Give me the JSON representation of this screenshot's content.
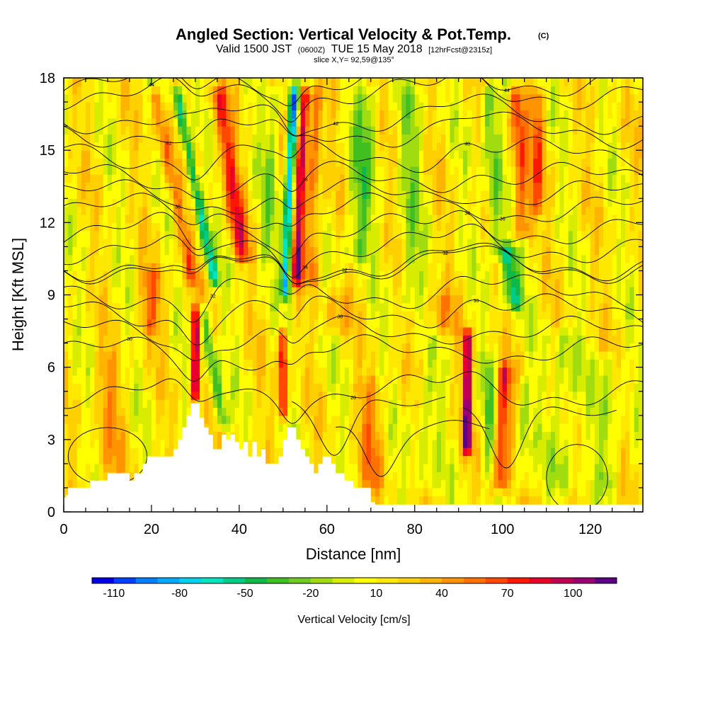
{
  "chart_data": {
    "type": "heatmap",
    "title_main": "Angled Section: Vertical Velocity & Pot.Temp.",
    "title_unit": "(C)",
    "subtitle_valid": "Valid 1500 JST",
    "subtitle_z": "(0600Z)",
    "subtitle_date": "TUE 15 May 2018",
    "subtitle_fcst": "[12hrFcst@2315z]",
    "slice_label": "slice X,Y= 92,59@135°",
    "xlabel": "Distance [nm]",
    "ylabel": "Height [Kft MSL]",
    "xlim": [
      0,
      132
    ],
    "ylim": [
      0,
      18
    ],
    "x_ticks": [
      0,
      20,
      40,
      60,
      80,
      100,
      120
    ],
    "y_ticks": [
      0,
      3,
      6,
      9,
      12,
      15,
      18
    ],
    "colorbar": {
      "title": "Vertical Velocity [cm/s]",
      "min": -120,
      "max": 120,
      "bins": 24,
      "labels": [
        -110,
        -80,
        -50,
        -20,
        10,
        40,
        70,
        100
      ],
      "colors": [
        "#0000e6",
        "#0040ff",
        "#0080ff",
        "#00aaff",
        "#00d2ee",
        "#00e5c0",
        "#00cc88",
        "#10b848",
        "#40c020",
        "#70cc20",
        "#a0dc10",
        "#d8ec00",
        "#ffff00",
        "#ffe800",
        "#ffd000",
        "#ffb400",
        "#ff9400",
        "#ff7200",
        "#ff4800",
        "#ff1800",
        "#e8002a",
        "#c00050",
        "#9a0070",
        "#5a0080"
      ]
    },
    "velocity_features": [
      {
        "x": 30,
        "zmin": 4.2,
        "zmax": 9.0,
        "peak": 95,
        "width": 1.0,
        "tilt": 0
      },
      {
        "x": 50,
        "zmin": 3.5,
        "zmax": 8.0,
        "peak": 90,
        "width": 0.9,
        "tilt": 0
      },
      {
        "x": 92,
        "zmin": 2.0,
        "zmax": 8.0,
        "peak": 95,
        "width": 1.0,
        "tilt": 0
      },
      {
        "x": 34,
        "zmin": 3.0,
        "zmax": 9.0,
        "peak": -55,
        "width": 1.4,
        "tilt": -1.0
      },
      {
        "x": 30,
        "zmin": 9.0,
        "zmax": 18.0,
        "peak": -70,
        "width": 1.3,
        "tilt": -1.1
      },
      {
        "x": 25,
        "zmin": 9.0,
        "zmax": 18.0,
        "peak": 45,
        "width": 1.6,
        "tilt": -1.1
      },
      {
        "x": 38,
        "zmin": 10.0,
        "zmax": 18.0,
        "peak": 60,
        "width": 2.0,
        "tilt": -0.8
      },
      {
        "x": 51.5,
        "zmin": 8.5,
        "zmax": 18.0,
        "peak": -100,
        "width": 1.1,
        "tilt": 0.25
      },
      {
        "x": 54,
        "zmin": 9.0,
        "zmax": 18.0,
        "peak": 90,
        "width": 1.2,
        "tilt": 0.25
      },
      {
        "x": 57,
        "zmin": 9.0,
        "zmax": 18.0,
        "peak": 45,
        "width": 1.5,
        "tilt": 0.1
      },
      {
        "x": 47,
        "zmin": 10.0,
        "zmax": 18.0,
        "peak": -25,
        "width": 2.0,
        "tilt": 0.2
      },
      {
        "x": 68,
        "zmin": 10.0,
        "zmax": 18.0,
        "peak": -35,
        "width": 3.0,
        "tilt": 0.3
      },
      {
        "x": 79,
        "zmin": 8.0,
        "zmax": 18.0,
        "peak": -25,
        "width": 2.5,
        "tilt": 0
      },
      {
        "x": 102,
        "zmin": 8.0,
        "zmax": 11.5,
        "peak": -65,
        "width": 2.0,
        "tilt": -0.5
      },
      {
        "x": 98,
        "zmin": 10.0,
        "zmax": 18.0,
        "peak": -45,
        "width": 2.0,
        "tilt": -0.4
      },
      {
        "x": 104,
        "zmin": 11.0,
        "zmax": 18.0,
        "peak": 55,
        "width": 2.0,
        "tilt": -0.3
      },
      {
        "x": 108,
        "zmin": 12.0,
        "zmax": 18.0,
        "peak": 40,
        "width": 1.5,
        "tilt": 0
      },
      {
        "x": 100,
        "zmin": 0.5,
        "zmax": 6.5,
        "peak": 65,
        "width": 1.8,
        "tilt": 0.2
      },
      {
        "x": 105,
        "zmin": 0.5,
        "zmax": 6.0,
        "peak": -25,
        "width": 1.8,
        "tilt": 0
      },
      {
        "x": 97,
        "zmin": 1.0,
        "zmax": 7.0,
        "peak": -30,
        "width": 1.5,
        "tilt": 0
      },
      {
        "x": 114,
        "zmin": 0.5,
        "zmax": 8.0,
        "peak": -25,
        "width": 3.0,
        "tilt": 0
      },
      {
        "x": 124,
        "zmin": 0.5,
        "zmax": 7.0,
        "peak": -25,
        "width": 2.5,
        "tilt": 0
      },
      {
        "x": 10,
        "zmin": 1.0,
        "zmax": 7.0,
        "peak": 25,
        "width": 3.0,
        "tilt": 0
      },
      {
        "x": 20,
        "zmin": 7.0,
        "zmax": 10.5,
        "peak": 35,
        "width": 3.0,
        "tilt": 0
      },
      {
        "x": 70,
        "zmin": 0.5,
        "zmax": 6.0,
        "peak": 30,
        "width": 3.0,
        "tilt": 0
      },
      {
        "x": 82,
        "zmin": 0.5,
        "zmax": 6.0,
        "peak": -20,
        "width": 3.0,
        "tilt": 0
      },
      {
        "x": 86,
        "zmin": 7.0,
        "zmax": 9.5,
        "peak": 30,
        "width": 3.0,
        "tilt": 0
      },
      {
        "x": 62,
        "zmin": 7.0,
        "zmax": 9.5,
        "peak": 25,
        "width": 3.0,
        "tilt": 0
      }
    ],
    "terrain_profile": {
      "x": [
        0,
        0.5,
        1,
        6,
        10,
        15,
        16,
        18,
        19,
        20,
        23,
        25,
        26,
        27,
        28,
        29,
        30,
        31,
        32,
        33,
        34,
        35,
        36,
        37,
        38,
        39,
        40,
        41,
        42,
        43,
        44,
        45,
        46,
        47,
        48,
        49,
        50,
        51,
        52,
        53,
        54,
        55,
        56,
        57,
        58,
        59,
        60,
        61,
        62,
        63,
        64,
        65,
        66,
        67,
        70,
        71,
        72,
        132
      ],
      "z": [
        0.6,
        0.7,
        1.0,
        1.3,
        1.6,
        1.3,
        1.6,
        2.0,
        2.3,
        2.3,
        2.3,
        2.6,
        3.0,
        3.5,
        4.0,
        4.5,
        4.5,
        3.9,
        3.5,
        3.2,
        2.6,
        2.6,
        3.2,
        3.0,
        3.2,
        2.9,
        2.6,
        2.9,
        2.3,
        2.9,
        2.3,
        2.6,
        2.0,
        2.0,
        2.0,
        2.3,
        3.0,
        3.5,
        3.5,
        3.0,
        2.6,
        2.3,
        2.0,
        1.6,
        2.0,
        2.3,
        2.3,
        2.0,
        1.6,
        1.6,
        1.3,
        1.3,
        1.0,
        1.0,
        0.4,
        0.3,
        0.3,
        0.3
      ]
    },
    "isentropes": [
      {
        "z": 5.0,
        "label": "28",
        "label_x": 66
      },
      {
        "z": 6.6,
        "label": "30",
        "label_x": 15
      },
      {
        "z": 7.4,
        "label": "30",
        "label_x": 63
      },
      {
        "z": 8.3,
        "label": "30",
        "label_x": 94
      },
      {
        "z": 9.1,
        "label": "32",
        "label_x": 34
      },
      {
        "z": 10.3,
        "label": "32",
        "label_x": 64
      },
      {
        "z": 10.2,
        "label": "32",
        "label_x": 87
      },
      {
        "z": 11.0,
        "label": "34",
        "label_x": 55
      },
      {
        "z": 11.7,
        "label": "34",
        "label_x": 92
      },
      {
        "z": 12.5,
        "label": "36",
        "label_x": 100
      },
      {
        "z": 13.1,
        "label": "38",
        "label_x": 26
      },
      {
        "z": 13.8,
        "label": "38",
        "label_x": 55
      },
      {
        "z": 14.8,
        "label": "40",
        "label_x": 92
      },
      {
        "z": 15.8,
        "label": "42",
        "label_x": 24
      },
      {
        "z": 16.4,
        "label": "42",
        "label_x": 62
      },
      {
        "z": 17.4,
        "label": "44",
        "label_x": 20
      },
      {
        "z": 17.9,
        "label": "44",
        "label_x": 101
      }
    ]
  }
}
